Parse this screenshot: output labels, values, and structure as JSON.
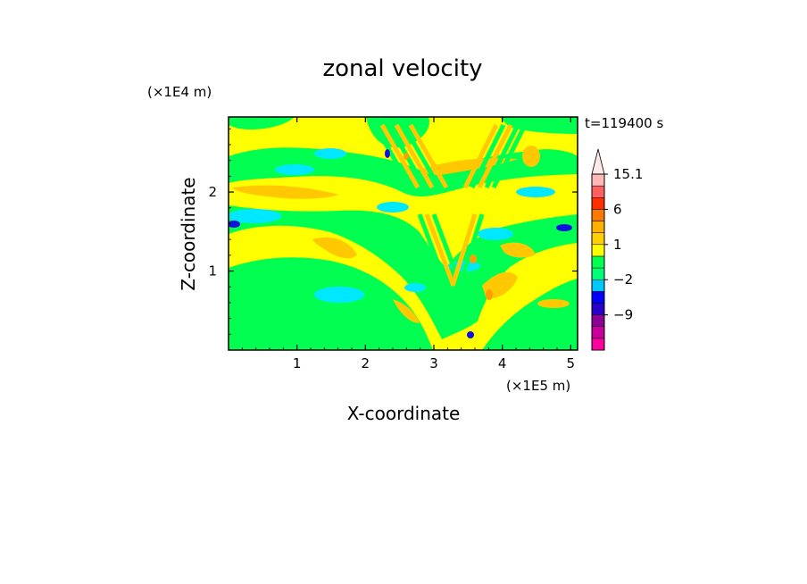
{
  "chart_data": {
    "type": "heatmap",
    "title": "zonal velocity",
    "xlabel": "X-coordinate",
    "ylabel": "Z-coordinate",
    "x_unit": "(×1E5 m)",
    "y_unit": "(×1E4 m)",
    "time_label": "t=119400 s",
    "xlim": [
      0,
      5.1
    ],
    "ylim": [
      0,
      2.95
    ],
    "x_ticks": [
      "1",
      "2",
      "3",
      "4",
      "5"
    ],
    "y_ticks": [
      "1",
      "2"
    ],
    "x_tick_values": [
      1,
      2,
      3,
      4,
      5
    ],
    "y_tick_values": [
      1,
      2
    ],
    "colorbar": {
      "labels": [
        "15.1",
        "6",
        "1",
        "−2",
        "−9"
      ],
      "label_values": [
        15.1,
        6,
        1,
        -2,
        -9
      ],
      "levels": [
        -15,
        -12,
        -9,
        -6,
        -3,
        -2,
        -1,
        0,
        1,
        2,
        3,
        6,
        9,
        12,
        15.1
      ],
      "colors": [
        "#ff00a0",
        "#c8009c",
        "#8c0094",
        "#2800c8",
        "#0000ff",
        "#00c8ff",
        "#00ff78",
        "#00ff50",
        "#ffff00",
        "#ffd000",
        "#ffb000",
        "#ff7800",
        "#ff3000",
        "#ff6060",
        "#ffb8b8"
      ]
    },
    "field_description_colors": {
      "background": "#ffff00",
      "green": "#00ff50",
      "cyan": "#00e8ff",
      "orange": "#ffc800",
      "dark_orange": "#ff9e00",
      "blue": "#1010e0"
    }
  }
}
